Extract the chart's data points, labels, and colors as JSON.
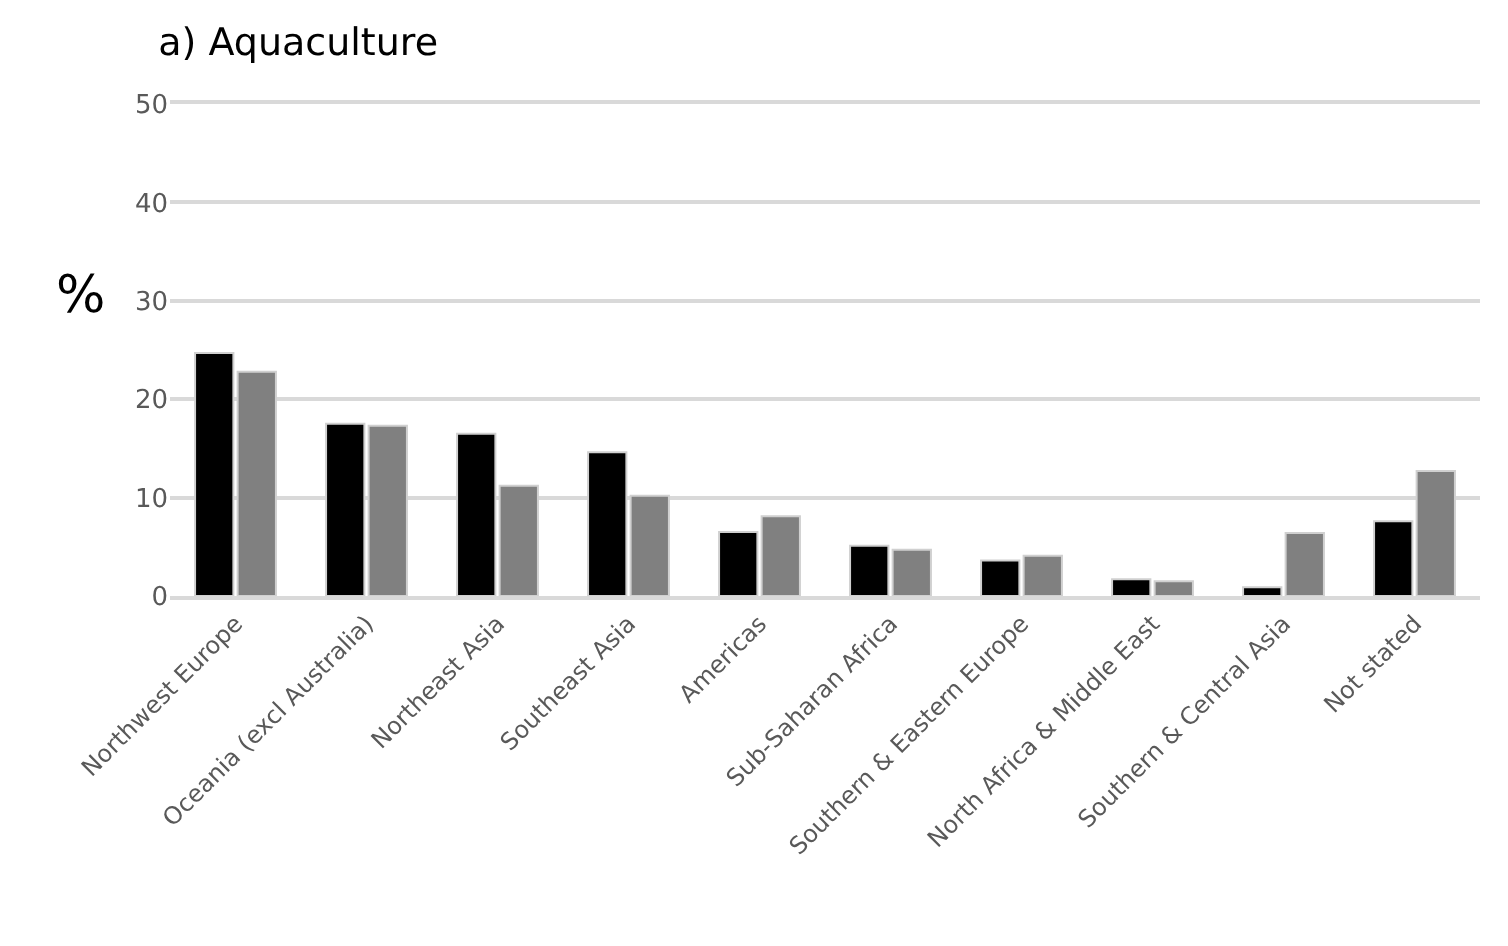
{
  "chart_data": {
    "type": "bar",
    "title": "a) Aquaculture",
    "ylabel": "%",
    "categories": [
      "Northwest Europe",
      "Oceania (excl Australia)",
      "Northeast Asia",
      "Southeast Asia",
      "Americas",
      "Sub-Saharan Africa",
      "Southern & Eastern Europe",
      "North Africa & Middle East",
      "Southern & Central Asia",
      "Not stated"
    ],
    "series": [
      {
        "color": "#000000",
        "values": [
          24.7,
          17.5,
          16.5,
          14.6,
          6.5,
          5.1,
          3.6,
          1.7,
          0.9,
          7.6
        ]
      },
      {
        "color": "#808080",
        "values": [
          22.8,
          17.3,
          11.2,
          10.2,
          8.1,
          4.7,
          4.1,
          1.5,
          6.4,
          12.7
        ]
      }
    ],
    "ylim": [
      0,
      50
    ],
    "yticks": [
      0,
      10,
      20,
      30,
      40,
      50
    ],
    "grid": "y"
  }
}
